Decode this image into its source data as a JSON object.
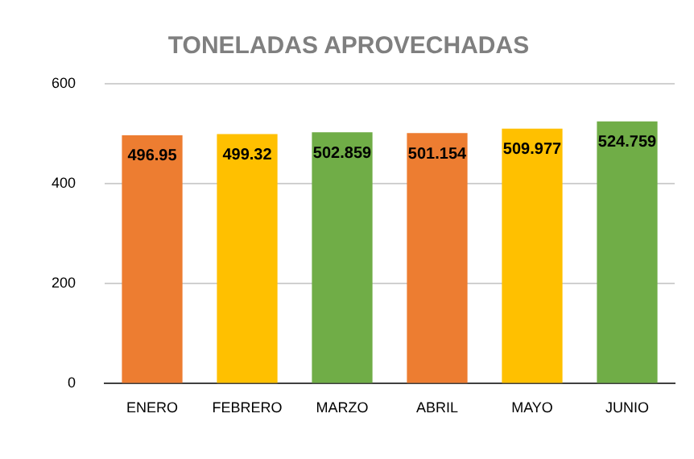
{
  "chart_data": {
    "type": "bar",
    "title": "TONELADAS APROVECHADAS",
    "categories": [
      "ENERO",
      "FEBRERO",
      "MARZO",
      "ABRIL",
      "MAYO",
      "JUNIO"
    ],
    "values": [
      496.95,
      499.32,
      502.859,
      501.154,
      509.977,
      524.759
    ],
    "colors": [
      "#ed7d31",
      "#ffc000",
      "#70ad47",
      "#ed7d31",
      "#ffc000",
      "#70ad47"
    ],
    "ylim": [
      0,
      600
    ],
    "yticks": [
      0,
      200,
      400,
      600
    ],
    "grid": "y",
    "data_labels": true,
    "legend": false
  }
}
